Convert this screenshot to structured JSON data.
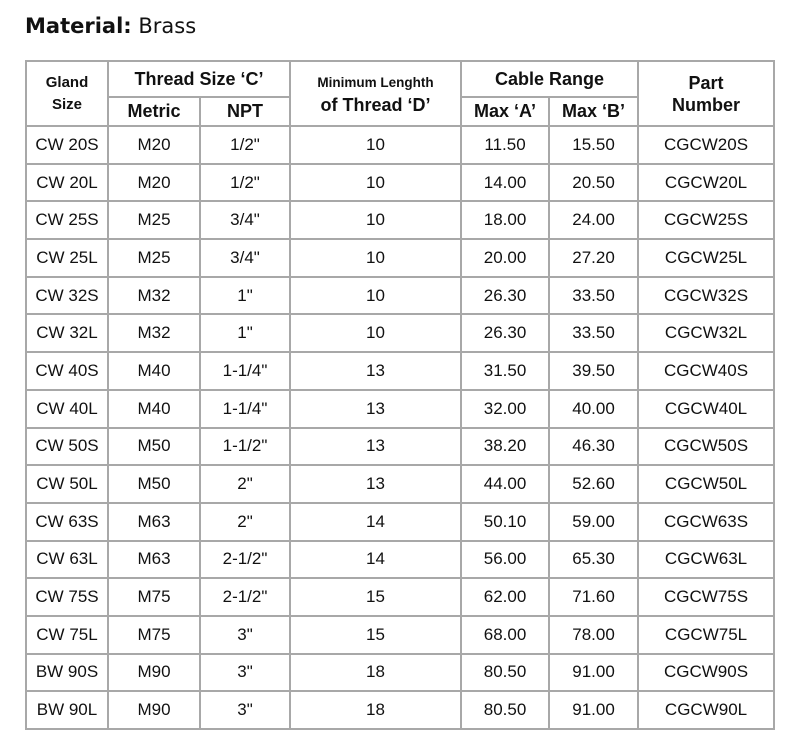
{
  "title": {
    "label": "Material:",
    "value": "Brass"
  },
  "table": {
    "header": {
      "gland_size": [
        "Gland",
        "Size"
      ],
      "thread_size": "Thread Size ‘C’",
      "metric": "Metric",
      "npt": "NPT",
      "min_length": [
        "Minimum Lenghth",
        "of Thread ‘D’"
      ],
      "cable_range": "Cable Range",
      "max_a": "Max ‘A’",
      "max_b": "Max ‘B’",
      "part_number": [
        "Part",
        "Number"
      ]
    },
    "rows": [
      [
        "CW 20S",
        "M20",
        "1/2\"",
        "10",
        "11.50",
        "15.50",
        "CGCW20S"
      ],
      [
        "CW 20L",
        "M20",
        "1/2\"",
        "10",
        "14.00",
        "20.50",
        "CGCW20L"
      ],
      [
        "CW 25S",
        "M25",
        "3/4\"",
        "10",
        "18.00",
        "24.00",
        "CGCW25S"
      ],
      [
        "CW 25L",
        "M25",
        "3/4\"",
        "10",
        "20.00",
        "27.20",
        "CGCW25L"
      ],
      [
        "CW 32S",
        "M32",
        "1\"",
        "10",
        "26.30",
        "33.50",
        "CGCW32S"
      ],
      [
        "CW 32L",
        "M32",
        "1\"",
        "10",
        "26.30",
        "33.50",
        "CGCW32L"
      ],
      [
        "CW 40S",
        "M40",
        "1-1/4\"",
        "13",
        "31.50",
        "39.50",
        "CGCW40S"
      ],
      [
        "CW 40L",
        "M40",
        "1-1/4\"",
        "13",
        "32.00",
        "40.00",
        "CGCW40L"
      ],
      [
        "CW 50S",
        "M50",
        "1-1/2\"",
        "13",
        "38.20",
        "46.30",
        "CGCW50S"
      ],
      [
        "CW 50L",
        "M50",
        "2\"",
        "13",
        "44.00",
        "52.60",
        "CGCW50L"
      ],
      [
        "CW 63S",
        "M63",
        "2\"",
        "14",
        "50.10",
        "59.00",
        "CGCW63S"
      ],
      [
        "CW 63L",
        "M63",
        "2-1/2\"",
        "14",
        "56.00",
        "65.30",
        "CGCW63L"
      ],
      [
        "CW 75S",
        "M75",
        "2-1/2\"",
        "15",
        "62.00",
        "71.60",
        "CGCW75S"
      ],
      [
        "CW 75L",
        "M75",
        "3\"",
        "15",
        "68.00",
        "78.00",
        "CGCW75L"
      ],
      [
        "BW 90S",
        "M90",
        "3\"",
        "18",
        "80.50",
        "91.00",
        "CGCW90S"
      ],
      [
        "BW 90L",
        "M90",
        "3\"",
        "18",
        "80.50",
        "91.00",
        "CGCW90L"
      ]
    ]
  }
}
